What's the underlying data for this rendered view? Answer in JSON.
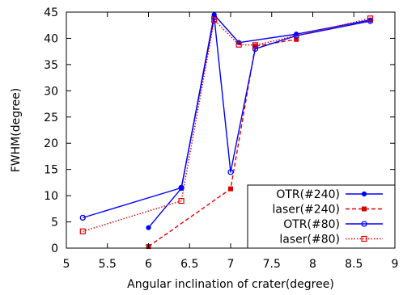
{
  "chart_data": {
    "type": "line",
    "xlabel": "Angular inclination of crater(degree)",
    "ylabel": "FWHM(degree)",
    "xlim": [
      5,
      9
    ],
    "ylim": [
      0,
      45
    ],
    "xticks": [
      5,
      5.5,
      6,
      6.5,
      7,
      7.5,
      8,
      8.5,
      9
    ],
    "xtick_labels": [
      "5",
      "5.5",
      "6",
      "6.5",
      "7",
      "7.5",
      "8",
      "8.5",
      "9"
    ],
    "yticks": [
      0,
      5,
      10,
      15,
      20,
      25,
      30,
      35,
      40,
      45
    ],
    "ytick_labels": [
      "0",
      "5",
      "10",
      "15",
      "20",
      "25",
      "30",
      "35",
      "40",
      "45"
    ],
    "grid": false,
    "legend_position": "bottom-right",
    "series": [
      {
        "name": "OTR(#240)",
        "color": "#0000ff",
        "line": "solid",
        "marker": "filled-circle",
        "x": [
          6.0,
          6.4,
          6.8,
          7.1,
          7.8,
          8.7
        ],
        "y": [
          3.9,
          11.4,
          44.5,
          39.2,
          40.8,
          43.5
        ]
      },
      {
        "name": "laser(#240)",
        "color": "#dd0000",
        "line": "dashed",
        "marker": "filled-square",
        "x": [
          6.0,
          7.0,
          7.3,
          7.8
        ],
        "y": [
          0.3,
          11.3,
          38.5,
          39.8
        ]
      },
      {
        "name": "OTR(#80)",
        "color": "#0000ff",
        "line": "solid",
        "marker": "open-circle",
        "x": [
          5.2,
          6.4,
          6.8,
          7.0,
          7.3,
          7.8,
          8.7
        ],
        "y": [
          5.8,
          11.5,
          44.0,
          14.5,
          38.0,
          40.5,
          43.3
        ]
      },
      {
        "name": "laser(#80)",
        "color": "#dd0000",
        "line": "dotted",
        "marker": "open-square",
        "x": [
          5.2,
          6.4,
          6.8,
          7.1,
          7.3,
          8.7
        ],
        "y": [
          3.2,
          9.0,
          43.5,
          38.8,
          38.7,
          43.8
        ]
      }
    ]
  }
}
